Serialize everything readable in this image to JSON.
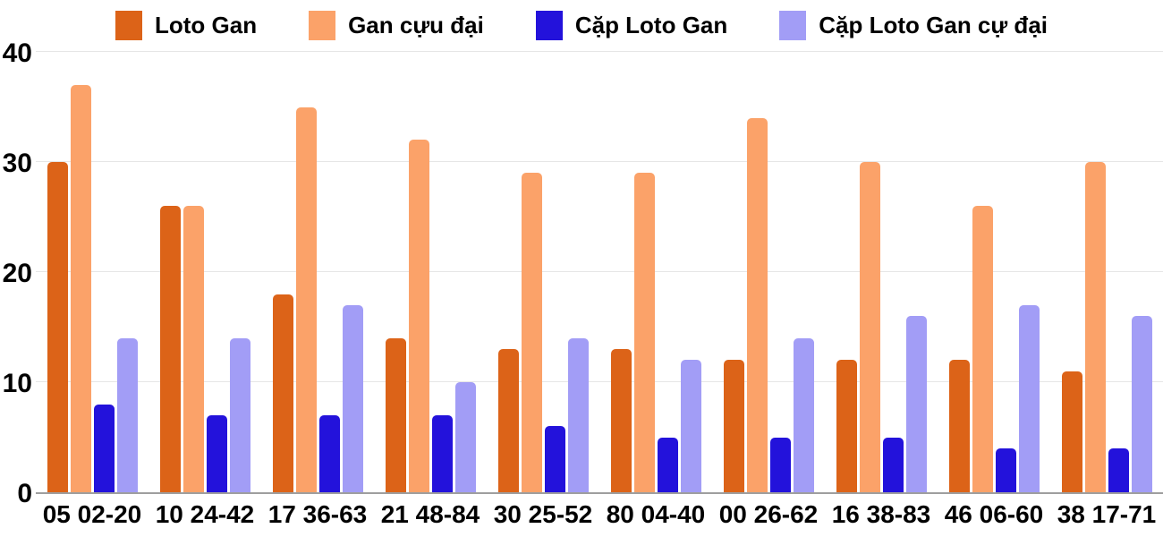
{
  "chart_data": {
    "type": "bar",
    "title": "",
    "xlabel": "",
    "ylabel": "",
    "categories": [
      "05 02-20",
      "10 24-42",
      "17 36-63",
      "21 48-84",
      "30 25-52",
      "80 04-40",
      "00 26-62",
      "16 38-83",
      "46 06-60",
      "38 17-71"
    ],
    "series": [
      {
        "name": "Loto Gan",
        "color": "#dc6318",
        "values": [
          30,
          26,
          18,
          14,
          13,
          13,
          12,
          12,
          12,
          11
        ]
      },
      {
        "name": "Gan cựu đại",
        "color": "#fba269",
        "values": [
          37,
          26,
          35,
          32,
          29,
          29,
          34,
          30,
          26,
          30
        ]
      },
      {
        "name": "Cặp Loto Gan",
        "color": "#2312db",
        "values": [
          8,
          7,
          7,
          7,
          6,
          5,
          5,
          5,
          4,
          4
        ]
      },
      {
        "name": "Cặp Loto Gan cự đại",
        "color": "#a29df6",
        "values": [
          14,
          14,
          17,
          10,
          14,
          12,
          14,
          16,
          17,
          16
        ]
      }
    ],
    "yticks": [
      0,
      10,
      20,
      30,
      40
    ],
    "ylim": [
      0,
      40
    ],
    "grid": true,
    "legend_position": "top"
  },
  "colors": {
    "background": "#ffffff",
    "gridline": "#e6e6e6",
    "axis_line": "#9e9e9e",
    "text": "#000000"
  }
}
